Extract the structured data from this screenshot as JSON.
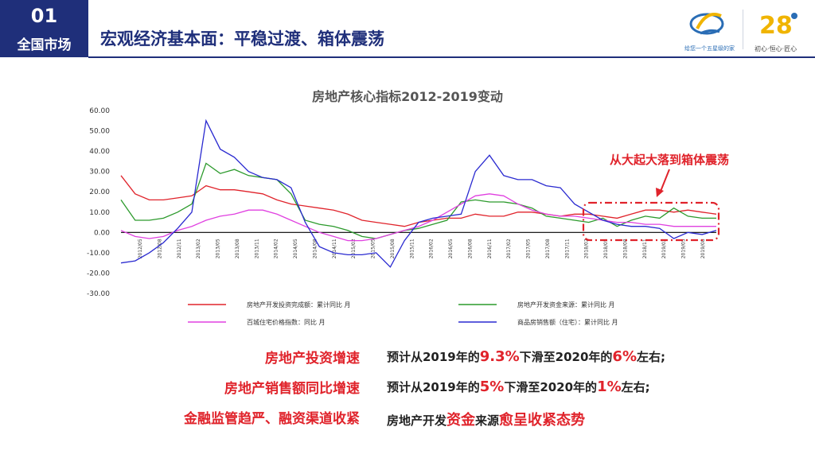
{
  "section": {
    "number": "01",
    "label": "全国市场"
  },
  "page_title": "宏观经济基本面：平稳过渡、箱体震荡",
  "logo": {
    "tagline": "给您一个五星级的家",
    "badge": "28",
    "badge_tag": "初心·恒心·匠心"
  },
  "annotation": "从大起大落到箱体震荡",
  "chart_data": {
    "type": "line",
    "title": "房地产核心指标2012-2019变动",
    "ylim": [
      -30,
      60
    ],
    "yticks": [
      "60.00",
      "50.00",
      "40.00",
      "30.00",
      "20.00",
      "10.00",
      "0.00",
      "-10.00",
      "-20.00",
      "-30.00"
    ],
    "xticks": [
      "2012/05",
      "2012/08",
      "2012/11",
      "2013/02",
      "2013/05",
      "2013/08",
      "2013/11",
      "2014/02",
      "2014/05",
      "2014/08",
      "2014/11",
      "2015/02",
      "2015/05",
      "2015/08",
      "2015/11",
      "2016/02",
      "2016/05",
      "2016/08",
      "2016/11",
      "2017/02",
      "2017/05",
      "2017/08",
      "2017/11",
      "2018/02",
      "2018/05",
      "2018/08",
      "2018/11",
      "2019/02",
      "2019/05",
      "2019/08"
    ],
    "series": [
      {
        "name": "房地产开发投资完成额：累计同比 月",
        "color": "#e0232b",
        "values": [
          28,
          19,
          16,
          16,
          17,
          18,
          23,
          21,
          21,
          20,
          19,
          16,
          14,
          13,
          12,
          11,
          9,
          6,
          5,
          4,
          3,
          5,
          6,
          7,
          7,
          9,
          8,
          8,
          10,
          10,
          9,
          8,
          9,
          9,
          8,
          7,
          9,
          11,
          11,
          10,
          11,
          10,
          9
        ]
      },
      {
        "name": "房地产开发资金来源：累计同比 月",
        "color": "#2c9a2c",
        "values": [
          16,
          6,
          6,
          7,
          10,
          14,
          34,
          29,
          31,
          28,
          27,
          26,
          19,
          6,
          4,
          3,
          1,
          -2,
          -3,
          -1,
          1,
          2,
          4,
          6,
          15,
          16,
          15,
          15,
          14,
          12,
          8,
          7,
          6,
          5,
          7,
          3,
          6,
          8,
          7,
          12,
          8,
          7,
          7
        ]
      },
      {
        "name": "百城住宅价格指数：同比 月",
        "color": "#e040e0",
        "values": [
          1,
          -2,
          -3,
          -2,
          1,
          3,
          6,
          8,
          9,
          11,
          11,
          9,
          6,
          3,
          0,
          -2,
          -4,
          -4,
          -3,
          -1,
          1,
          3,
          6,
          10,
          14,
          18,
          19,
          18,
          14,
          11,
          9,
          8,
          8,
          7,
          6,
          5,
          5,
          4,
          4,
          3,
          3,
          3,
          3
        ]
      },
      {
        "name": "商品房销售额（住宅）：累计同比 月",
        "color": "#2a2ad0",
        "values": [
          -15,
          -14,
          -10,
          -5,
          2,
          10,
          55,
          41,
          37,
          30,
          27,
          26,
          22,
          5,
          -7,
          -10,
          -11,
          -11,
          -10,
          -17,
          -4,
          5,
          7,
          8,
          9,
          30,
          38,
          28,
          26,
          26,
          23,
          22,
          14,
          10,
          6,
          4,
          3,
          3,
          2,
          -3,
          0,
          -1,
          1
        ]
      }
    ]
  }
}
